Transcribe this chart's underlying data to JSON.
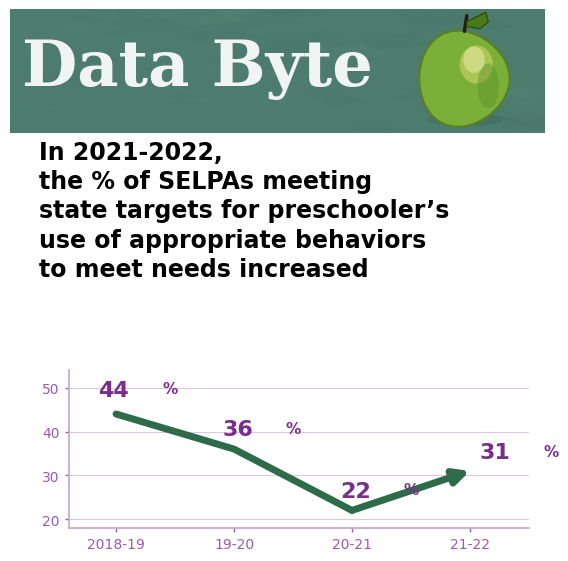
{
  "title_banner": "Data Byte",
  "banner_color": "#4d7c6f",
  "subtitle_lines": [
    "In 2021-2022,",
    "the % of SELPAs meeting",
    "state targets for preschooler’s",
    "use of appropriate behaviors",
    "to meet needs increased"
  ],
  "x_labels": [
    "2018-19",
    "19-20",
    "20-21",
    "21-22"
  ],
  "y_values": [
    44,
    36,
    22,
    31
  ],
  "line_color": "#2d6b4a",
  "label_color": "#7b2d8b",
  "label_pct_color": "#7b2d8b",
  "yticks": [
    20,
    30,
    40,
    50
  ],
  "ylim": [
    18,
    54
  ],
  "xlim": [
    -0.4,
    3.5
  ],
  "tick_color": "#9b59b6",
  "axis_color": "#c8a0d8",
  "background_color": "#ffffff",
  "banner_bg": "#4d7c6f",
  "label_fontsize": 16,
  "pct_fontsize": 11,
  "subtitle_fontsize": 17,
  "tick_fontsize": 10,
  "line_width": 5.0
}
